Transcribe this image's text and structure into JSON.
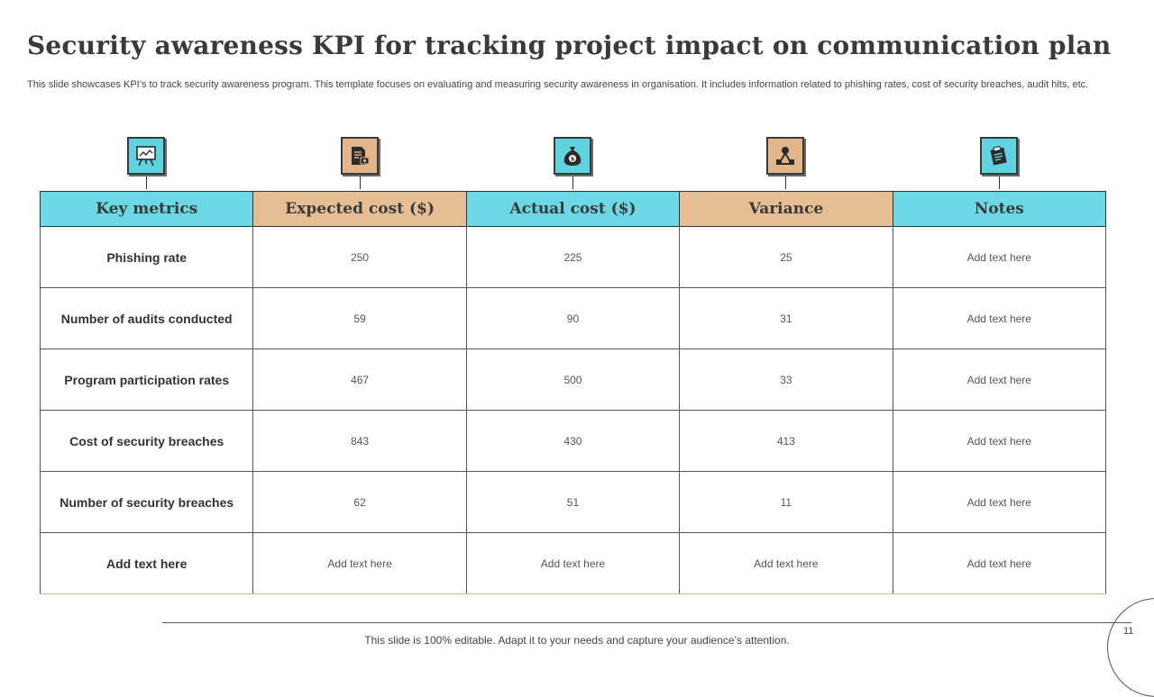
{
  "slide": {
    "title": "Security awareness KPI for tracking project impact on communication plan",
    "subtitle": "This slide showcases KPI’s to track security awareness program. This template focuses on evaluating and measuring security awareness in organisation. It includes information related to phishing rates, cost of security breaches, audit hits, etc.",
    "footer": "This slide is 100% editable. Adapt it to your needs and capture your audience’s attention.",
    "page_number": "11"
  },
  "colors": {
    "teal": "#6bd9e5",
    "tan": "#e6be93",
    "text": "#3a3a3a"
  },
  "icons": [
    {
      "name": "presentation-board-icon",
      "color": "teal"
    },
    {
      "name": "invoice-document-icon",
      "color": "tan"
    },
    {
      "name": "money-bag-icon",
      "color": "teal"
    },
    {
      "name": "variance-shapes-icon",
      "color": "tan"
    },
    {
      "name": "notes-clipboard-icon",
      "color": "teal"
    }
  ],
  "table": {
    "headers": [
      "Key metrics",
      "Expected cost ($)",
      "Actual cost ($)",
      "Variance",
      "Notes"
    ],
    "rows": [
      [
        "Phishing rate",
        "250",
        "225",
        "25",
        "Add text here"
      ],
      [
        "Number of audits conducted",
        "59",
        "90",
        "31",
        "Add text here"
      ],
      [
        "Program participation rates",
        "467",
        "500",
        "33",
        "Add text here"
      ],
      [
        "Cost of security breaches",
        "843",
        "430",
        "413",
        "Add text here"
      ],
      [
        "Number of security breaches",
        "62",
        "51",
        "11",
        "Add text here"
      ],
      [
        "Add  text here",
        "Add text here",
        "Add text here",
        "Add text here",
        "Add text here"
      ]
    ]
  }
}
